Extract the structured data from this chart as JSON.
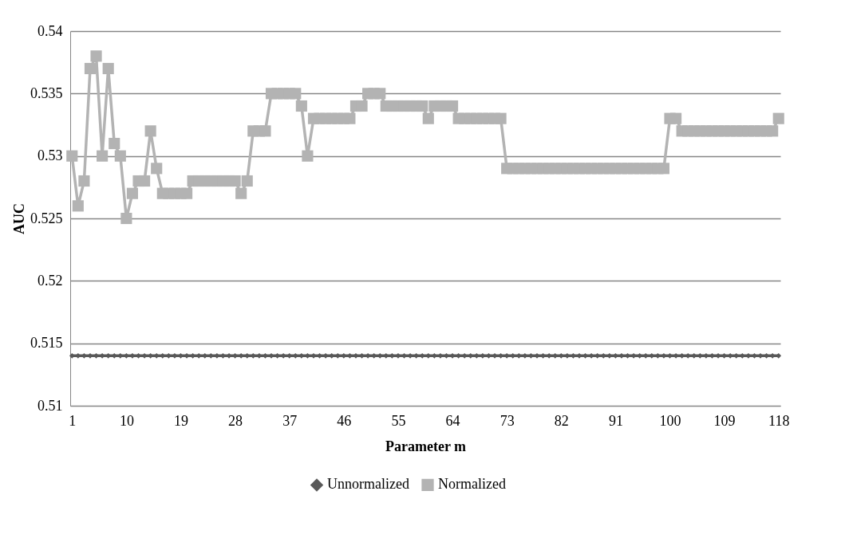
{
  "chart_data": {
    "type": "line",
    "xlabel": "Parameter m",
    "ylabel": "AUC",
    "categories": [
      "1",
      null,
      null,
      null,
      null,
      null,
      null,
      null,
      null,
      "10",
      null,
      null,
      null,
      null,
      null,
      null,
      null,
      null,
      "19",
      null,
      null,
      null,
      null,
      null,
      null,
      null,
      null,
      "28",
      null,
      null,
      null,
      null,
      null,
      null,
      null,
      null,
      "37",
      null,
      null,
      null,
      null,
      null,
      null,
      null,
      null,
      "46",
      null,
      null,
      null,
      null,
      null,
      null,
      null,
      null,
      "55",
      null,
      null,
      null,
      null,
      null,
      null,
      null,
      null,
      "64",
      null,
      null,
      null,
      null,
      null,
      null,
      null,
      null,
      "73",
      null,
      null,
      null,
      null,
      null,
      null,
      null,
      null,
      "82",
      null,
      null,
      null,
      null,
      null,
      null,
      null,
      null,
      "91",
      null,
      null,
      null,
      null,
      null,
      null,
      null,
      null,
      "100",
      null,
      null,
      null,
      null,
      null,
      null,
      null,
      null,
      "109",
      null,
      null,
      null,
      null,
      null,
      null,
      null,
      null,
      "118"
    ],
    "series": [
      {
        "name": "Unnormalized",
        "color": "#595959",
        "marker": "diamond",
        "values": [
          0.514,
          0.514,
          0.514,
          0.514,
          0.514,
          0.514,
          0.514,
          0.514,
          0.514,
          0.514,
          0.514,
          0.514,
          0.514,
          0.514,
          0.514,
          0.514,
          0.514,
          0.514,
          0.514,
          0.514,
          0.514,
          0.514,
          0.514,
          0.514,
          0.514,
          0.514,
          0.514,
          0.514,
          0.514,
          0.514,
          0.514,
          0.514,
          0.514,
          0.514,
          0.514,
          0.514,
          0.514,
          0.514,
          0.514,
          0.514,
          0.514,
          0.514,
          0.514,
          0.514,
          0.514,
          0.514,
          0.514,
          0.514,
          0.514,
          0.514,
          0.514,
          0.514,
          0.514,
          0.514,
          0.514,
          0.514,
          0.514,
          0.514,
          0.514,
          0.514,
          0.514,
          0.514,
          0.514,
          0.514,
          0.514,
          0.514,
          0.514,
          0.514,
          0.514,
          0.514,
          0.514,
          0.514,
          0.514,
          0.514,
          0.514,
          0.514,
          0.514,
          0.514,
          0.514,
          0.514,
          0.514,
          0.514,
          0.514,
          0.514,
          0.514,
          0.514,
          0.514,
          0.514,
          0.514,
          0.514,
          0.514,
          0.514,
          0.514,
          0.514,
          0.514,
          0.514,
          0.514,
          0.514,
          0.514,
          0.514,
          0.514,
          0.514,
          0.514,
          0.514,
          0.514,
          0.514,
          0.514,
          0.514,
          0.514,
          0.514,
          0.514,
          0.514,
          0.514,
          0.514,
          0.514,
          0.514,
          0.514,
          0.514
        ]
      },
      {
        "name": "Normalized",
        "color": "#b3b3b3",
        "marker": "square",
        "values": [
          0.53,
          0.526,
          0.528,
          0.537,
          0.538,
          0.53,
          0.537,
          0.531,
          0.53,
          0.525,
          0.527,
          0.528,
          0.528,
          0.532,
          0.529,
          0.527,
          0.527,
          0.527,
          0.527,
          0.527,
          0.528,
          0.528,
          0.528,
          0.528,
          0.528,
          0.528,
          0.528,
          0.528,
          0.527,
          0.528,
          0.532,
          0.532,
          0.532,
          0.535,
          0.535,
          0.535,
          0.535,
          0.535,
          0.534,
          0.53,
          0.533,
          0.533,
          0.533,
          0.533,
          0.533,
          0.533,
          0.533,
          0.534,
          0.534,
          0.535,
          0.535,
          0.535,
          0.534,
          0.534,
          0.534,
          0.534,
          0.534,
          0.534,
          0.534,
          0.533,
          0.534,
          0.534,
          0.534,
          0.534,
          0.533,
          0.533,
          0.533,
          0.533,
          0.533,
          0.533,
          0.533,
          0.533,
          0.529,
          0.529,
          0.529,
          0.529,
          0.529,
          0.529,
          0.529,
          0.529,
          0.529,
          0.529,
          0.529,
          0.529,
          0.529,
          0.529,
          0.529,
          0.529,
          0.529,
          0.529,
          0.529,
          0.529,
          0.529,
          0.529,
          0.529,
          0.529,
          0.529,
          0.529,
          0.529,
          0.533,
          0.533,
          0.532,
          0.532,
          0.532,
          0.532,
          0.532,
          0.532,
          0.532,
          0.532,
          0.532,
          0.532,
          0.532,
          0.532,
          0.532,
          0.532,
          0.532,
          0.532,
          0.533
        ]
      }
    ],
    "ylim": [
      0.51,
      0.54
    ],
    "yticks": [
      0.51,
      0.515,
      0.52,
      0.525,
      0.53,
      0.535,
      0.54
    ],
    "grid": "y",
    "legend": "bottom"
  }
}
